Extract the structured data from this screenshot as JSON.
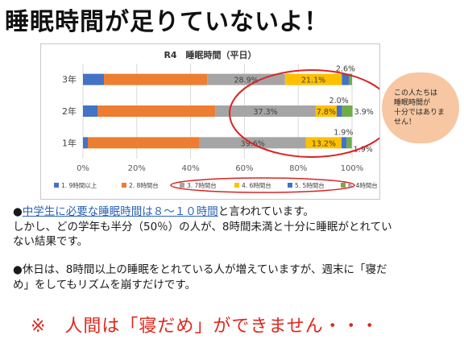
{
  "title": "睡眠時間が足りていないよ！",
  "chart_data": {
    "type": "bar",
    "stacked": true,
    "orientation": "horizontal",
    "title": "R4　睡眠時間（平日）",
    "categories": [
      "3年",
      "2年",
      "1年"
    ],
    "series": [
      {
        "name": "1. 9時間以上",
        "color": "#4472c4",
        "values": [
          7.8,
          5.5,
          1.8
        ]
      },
      {
        "name": "2. 8時間台",
        "color": "#ed7d31",
        "values": [
          38.4,
          43.7,
          41.5
        ]
      },
      {
        "name": "3. 7時間台",
        "color": "#a5a5a5",
        "values": [
          28.9,
          37.3,
          39.6
        ]
      },
      {
        "name": "4. 6時間台",
        "color": "#ffc000",
        "values": [
          21.1,
          7.8,
          13.2
        ]
      },
      {
        "name": "5. 5時間台",
        "color": "#4472c4",
        "values": [
          2.6,
          2.0,
          1.9
        ]
      },
      {
        "name": "6. 4時間台",
        "color": "#70ad47",
        "values": [
          1.2,
          3.9,
          1.9
        ]
      }
    ],
    "data_labels": [
      [
        "",
        "",
        "28.9%",
        "21.1%",
        "2.6%",
        ""
      ],
      [
        "",
        "",
        "37.3%",
        "7.8%",
        "2.0%",
        "3.9%"
      ],
      [
        "",
        "",
        "39.6%",
        "13.2%",
        "1.9%",
        "1.9%"
      ]
    ],
    "xlim": [
      0,
      100
    ],
    "x_ticks": [
      "0%",
      "20%",
      "40%",
      "60%",
      "80%",
      "100%"
    ],
    "legend_position": "bottom",
    "grid": true
  },
  "callout": {
    "text": "この人たちは\n睡眠時間が\n十分ではありま\nせん！",
    "color": "#f6c7a2"
  },
  "highlight_color": "#d92323",
  "text": {
    "p1_bullet": "●",
    "p1_link": "中学生に必要な睡眠時間は８～１０時間",
    "p1_rest": "と言われています。",
    "p1_line2": "しかし、どの学年も半分（50％）の人が、8時間未満と十分に睡眠がとれてい",
    "p1_line3": "ない結果です。",
    "p2_line1": "●休日は、8時間以上の睡眠をとれている人が増えていますが、週末に「寝だ",
    "p2_line2": "め」をしてもリズムを崩すだけです。",
    "footer": "※　人間は「寝だめ」ができません・・・"
  }
}
